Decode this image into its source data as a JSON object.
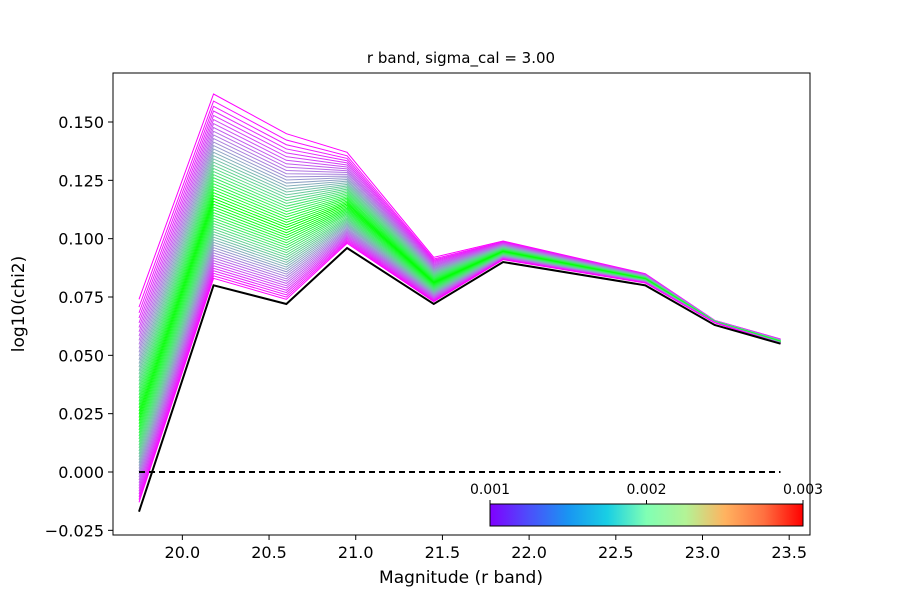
{
  "chart_data": {
    "type": "line",
    "title": "r band, sigma_cal = 3.00",
    "xlabel": "Magnitude (r band)",
    "ylabel": "log10(chi2)",
    "xlim": [
      19.6,
      23.62
    ],
    "ylim": [
      -0.027,
      0.171
    ],
    "x": [
      19.75,
      20.18,
      20.6,
      20.95,
      21.45,
      21.85,
      22.67,
      23.07,
      23.45
    ],
    "xticks": [
      "20.0",
      "20.5",
      "21.0",
      "21.5",
      "22.0",
      "22.5",
      "23.0",
      "23.5"
    ],
    "xtick_values": [
      20.0,
      20.5,
      21.0,
      21.5,
      22.0,
      22.5,
      23.0,
      23.5
    ],
    "yticks": [
      "−0.025",
      "0.000",
      "0.025",
      "0.050",
      "0.075",
      "0.100",
      "0.125",
      "0.150"
    ],
    "ytick_values": [
      -0.025,
      0.0,
      0.025,
      0.05,
      0.075,
      0.1,
      0.125,
      0.15
    ],
    "series_count": 60,
    "color_min_curve": [
      0.074,
      0.162,
      0.145,
      0.137,
      0.092,
      0.099,
      0.085,
      0.065,
      0.057
    ],
    "color_max_curve": [
      -0.013,
      0.083,
      0.074,
      0.098,
      0.073,
      0.091,
      0.081,
      0.064,
      0.055
    ],
    "black_curve": [
      -0.017,
      0.08,
      0.072,
      0.096,
      0.072,
      0.09,
      0.08,
      0.063,
      0.055
    ],
    "reference_line": {
      "y": 0.0,
      "x_range": [
        19.75,
        23.45
      ],
      "style": "dashed",
      "color": "#000000"
    },
    "colorbar": {
      "colormap": "rainbow",
      "range": [
        0.001,
        0.003
      ],
      "ticks": [
        "0.001",
        "0.002",
        "0.003"
      ],
      "tick_values": [
        0.001,
        0.002,
        0.003
      ],
      "placement": "lower-right inset",
      "orientation": "horizontal"
    },
    "grid": false
  }
}
